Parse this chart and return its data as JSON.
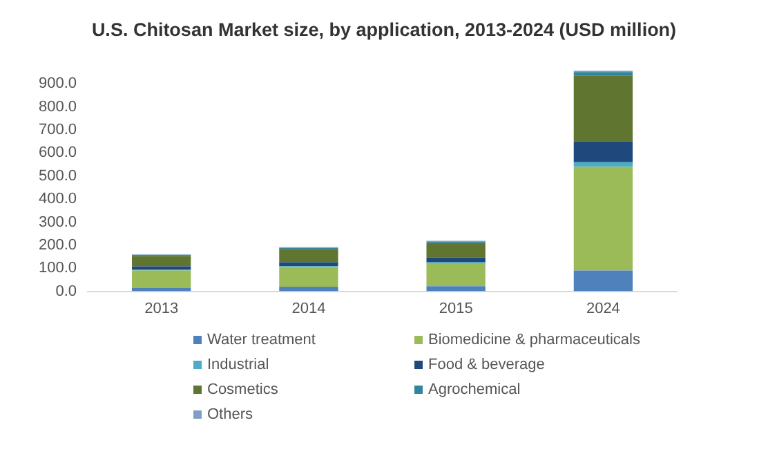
{
  "chart_data": {
    "type": "bar",
    "title": "U.S. Chitosan Market size, by application, 2013-2024 (USD million)",
    "categories": [
      "2013",
      "2014",
      "2015",
      "2024"
    ],
    "stacked": true,
    "series": [
      {
        "name": "Water treatment",
        "color": "#4f81bd",
        "values": [
          14,
          20,
          22,
          90
        ]
      },
      {
        "name": "Biomedicine & pharmaceuticals",
        "color": "#9bbb59",
        "values": [
          76,
          86,
          100,
          450
        ]
      },
      {
        "name": "Industrial",
        "color": "#4bacc6",
        "values": [
          3,
          3,
          4,
          20
        ]
      },
      {
        "name": "Food & beverage",
        "color": "#1f497d",
        "values": [
          15,
          17,
          20,
          90
        ]
      },
      {
        "name": "Cosmetics",
        "color": "#5f7530",
        "values": [
          45,
          58,
          63,
          286
        ]
      },
      {
        "name": "Agrochemical",
        "color": "#31859c",
        "values": [
          5,
          5,
          7,
          15
        ]
      },
      {
        "name": "Others",
        "color": "#7f9fc8",
        "values": [
          2,
          2,
          3,
          5
        ]
      }
    ],
    "ylim": [
      0,
      960
    ],
    "yticks": [
      {
        "value": 0,
        "label": "0.0"
      },
      {
        "value": 100,
        "label": "100.0"
      },
      {
        "value": 200,
        "label": "200.0"
      },
      {
        "value": 300,
        "label": "300.0"
      },
      {
        "value": 400,
        "label": "400.0"
      },
      {
        "value": 500,
        "label": "500.0"
      },
      {
        "value": 600,
        "label": "600.0"
      },
      {
        "value": 700,
        "label": "700.0"
      },
      {
        "value": 800,
        "label": "800.0"
      },
      {
        "value": 900,
        "label": "900.0"
      }
    ],
    "grid": false,
    "legend": "bottom"
  }
}
